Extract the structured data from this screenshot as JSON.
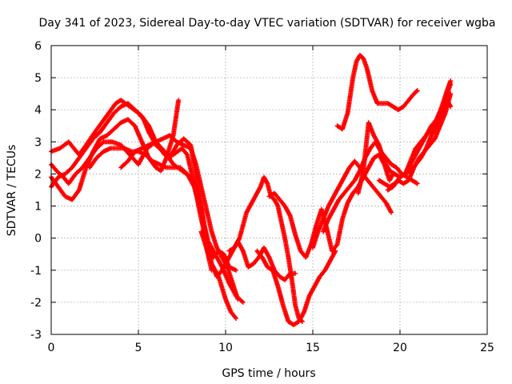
{
  "chart_data": {
    "type": "scatter",
    "title": "Day 341 of 2023, Sidereal Day-to-day VTEC variation (SDTVAR) for receiver wgba",
    "xlabel": "GPS time / hours",
    "ylabel": "SDTVAR / TECUs",
    "xlim": [
      0,
      25
    ],
    "ylim": [
      -3,
      6
    ],
    "x_ticks": [
      0,
      5,
      10,
      15,
      20,
      25
    ],
    "y_ticks": [
      -3,
      -2,
      -1,
      0,
      1,
      2,
      3,
      4,
      5,
      6
    ],
    "grid": true,
    "marker": "plus",
    "series": [
      {
        "color": "#ff0000",
        "tracks": [
          {
            "x": [
              0,
              0.5,
              1.0,
              1.3,
              1.6,
              2.0,
              2.5,
              2.9,
              3.3,
              3.7,
              4.0,
              4.5,
              5.0,
              5.3,
              5.6,
              6.0,
              6.4,
              6.8,
              7.2,
              7.6,
              8.0,
              8.3,
              8.6,
              8.9,
              9.2,
              9.6,
              10.0,
              10.3,
              10.6
            ],
            "y": [
              2.7,
              2.8,
              3.0,
              2.8,
              2.6,
              2.9,
              3.3,
              3.6,
              3.9,
              4.2,
              4.3,
              4.1,
              3.9,
              3.7,
              3.3,
              2.9,
              2.7,
              2.5,
              2.9,
              3.1,
              2.9,
              2.0,
              1.0,
              0.0,
              -0.8,
              -1.2,
              -1.9,
              -2.3,
              -2.5
            ]
          },
          {
            "x": [
              0,
              0.4,
              0.8,
              1.2,
              1.6,
              2.0,
              2.4,
              2.8,
              3.2,
              3.6,
              4.0,
              4.4,
              4.8,
              5.2,
              5.6,
              6.0,
              6.3,
              6.6,
              7.0,
              7.3
            ],
            "y": [
              1.9,
              1.6,
              1.3,
              1.2,
              1.5,
              2.2,
              2.7,
              3.1,
              3.2,
              3.4,
              3.6,
              3.7,
              3.5,
              3.0,
              2.5,
              2.2,
              2.1,
              2.5,
              3.2,
              4.3
            ]
          },
          {
            "x": [
              0,
              0.4,
              0.8,
              1.2,
              1.6,
              2.0,
              2.4,
              2.8,
              3.2,
              3.6,
              4.0,
              4.4,
              4.8,
              5.2,
              5.6,
              6.0,
              6.5,
              7.0,
              7.5,
              7.8,
              8.2,
              8.6,
              9.0,
              9.3,
              9.6,
              9.9,
              10.2,
              10.6
            ],
            "y": [
              1.6,
              1.9,
              2.0,
              2.2,
              2.5,
              2.8,
              3.1,
              3.3,
              3.6,
              3.9,
              4.1,
              4.2,
              4.0,
              3.8,
              3.5,
              3.0,
              2.6,
              2.6,
              2.8,
              2.6,
              1.7,
              0.6,
              -0.3,
              -0.6,
              -0.4,
              -0.5,
              -0.9,
              -1.0
            ]
          },
          {
            "x": [
              0,
              0.3,
              0.7,
              1.0,
              1.4,
              1.8,
              2.2,
              2.6,
              3.0,
              3.5,
              4.0,
              4.5,
              5.0,
              5.5,
              6.0,
              6.5,
              7.0,
              7.5,
              8.0,
              8.3,
              8.6,
              8.9,
              9.2
            ],
            "y": [
              2.3,
              2.1,
              1.9,
              1.7,
              2.0,
              2.2,
              2.5,
              2.8,
              3.0,
              3.0,
              2.9,
              2.6,
              2.3,
              2.8,
              3.0,
              2.7,
              2.3,
              2.1,
              1.9,
              1.6,
              0.9,
              -0.3,
              -1.0
            ]
          },
          {
            "x": [
              2.2,
              2.6,
              3.0,
              3.4,
              3.8,
              4.2,
              4.6,
              5.0,
              5.4,
              5.8,
              6.2,
              6.6,
              7.0,
              7.4,
              7.8,
              8.2,
              8.6,
              9.0,
              9.4,
              9.8,
              10.2,
              10.6,
              11.0
            ],
            "y": [
              2.2,
              2.5,
              2.7,
              2.8,
              2.8,
              2.8,
              2.7,
              2.7,
              2.6,
              2.4,
              2.3,
              2.2,
              2.2,
              2.2,
              2.0,
              1.6,
              0.8,
              -0.1,
              -0.5,
              -0.9,
              -1.4,
              -1.8,
              -2.0
            ]
          },
          {
            "x": [
              4.0,
              4.4,
              4.8,
              5.2,
              5.6,
              6.0,
              6.4,
              6.8,
              7.2,
              7.6,
              8.0,
              8.3,
              8.6,
              8.9,
              9.2,
              9.5,
              9.8,
              10.1,
              10.4,
              10.7
            ],
            "y": [
              2.2,
              2.4,
              2.7,
              2.8,
              2.9,
              3.0,
              3.1,
              3.2,
              3.0,
              2.9,
              2.8,
              2.3,
              1.6,
              0.9,
              0.2,
              -0.3,
              -0.6,
              -0.9,
              -1.4,
              -1.9
            ]
          },
          {
            "x": [
              8.6,
              8.9,
              9.2,
              9.5,
              9.8,
              10.1,
              10.4,
              10.7,
              11.0,
              11.3,
              11.6,
              11.9,
              12.2,
              12.5,
              12.8,
              13.1,
              13.4,
              13.7,
              14.0
            ],
            "y": [
              0.2,
              -0.3,
              -0.8,
              -1.2,
              -1.0,
              -0.7,
              -0.4,
              -0.1,
              -0.4,
              -0.9,
              -0.8,
              -0.6,
              -0.3,
              -0.6,
              -1.0,
              -1.2,
              -1.3,
              -1.1,
              -1.1
            ]
          },
          {
            "x": [
              10.2,
              10.5,
              10.8,
              11.0,
              11.2,
              11.4,
              11.6,
              11.8,
              12.0,
              12.2,
              12.4,
              12.6,
              12.8,
              13.0,
              13.2,
              13.4,
              13.6,
              13.8,
              14.0,
              14.2,
              14.4
            ],
            "y": [
              -0.4,
              -0.3,
              0.0,
              0.4,
              0.8,
              1.0,
              1.2,
              1.4,
              1.6,
              1.9,
              1.7,
              1.3,
              1.2,
              1.0,
              0.5,
              0.0,
              -0.6,
              -1.3,
              -2.1,
              -2.5,
              -2.6
            ]
          },
          {
            "x": [
              11.8,
              12.1,
              12.4,
              12.7,
              13.0,
              13.3,
              13.6,
              13.9,
              14.2,
              14.5,
              14.8,
              15.1,
              15.4,
              15.7,
              16.0,
              16.3
            ],
            "y": [
              -0.4,
              -0.6,
              -0.9,
              -1.0,
              -1.5,
              -2.1,
              -2.6,
              -2.7,
              -2.6,
              -2.3,
              -1.8,
              -1.5,
              -1.2,
              -1.0,
              -0.7,
              -0.4
            ]
          },
          {
            "x": [
              12.5,
              12.8,
              13.1,
              13.4,
              13.7,
              14.0,
              14.3,
              14.6,
              14.9,
              15.2,
              15.5,
              15.8,
              16.1,
              16.4,
              16.7,
              17.0,
              17.3,
              17.6,
              17.9,
              18.2,
              18.5,
              18.8,
              19.1,
              19.4,
              19.6
            ],
            "y": [
              1.3,
              1.4,
              1.2,
              1.0,
              0.7,
              0.1,
              -0.4,
              -0.6,
              -0.2,
              0.4,
              0.9,
              0.3,
              -0.4,
              -0.2,
              0.6,
              1.1,
              1.4,
              1.6,
              1.9,
              2.2,
              2.5,
              2.6,
              2.3,
              1.8,
              2.0
            ]
          },
          {
            "x": [
              15.0,
              15.3,
              15.6,
              15.9,
              16.2,
              16.5,
              16.8,
              17.1,
              17.4,
              17.7,
              18.0,
              18.3,
              18.6,
              18.9,
              19.2,
              19.5
            ],
            "y": [
              -0.3,
              0.2,
              0.6,
              1.0,
              1.3,
              1.6,
              1.9,
              2.2,
              2.4,
              2.2,
              1.9,
              1.7,
              1.5,
              1.3,
              1.1,
              0.8
            ]
          },
          {
            "x": [
              15.6,
              15.9,
              16.2,
              16.5,
              16.8,
              17.1,
              17.4,
              17.7,
              18.0,
              18.3,
              18.6,
              18.9,
              19.2,
              19.5,
              19.8,
              20.1,
              20.4,
              20.7,
              21.0
            ],
            "y": [
              0.2,
              0.6,
              0.9,
              1.2,
              1.4,
              1.6,
              1.8,
              2.1,
              2.5,
              2.8,
              3.0,
              2.7,
              2.5,
              2.3,
              2.2,
              2.0,
              1.9,
              1.8,
              1.7
            ]
          },
          {
            "x": [
              16.4,
              16.7,
              17.0,
              17.3,
              17.5,
              17.7,
              17.9,
              18.1,
              18.4,
              18.7,
              19.0,
              19.3,
              19.6,
              19.9,
              20.2,
              20.5,
              20.8,
              21.0
            ],
            "y": [
              3.5,
              3.4,
              3.9,
              5.0,
              5.5,
              5.7,
              5.6,
              5.3,
              4.6,
              4.2,
              4.2,
              4.2,
              4.1,
              4.0,
              4.1,
              4.3,
              4.5,
              4.6
            ]
          },
          {
            "x": [
              17.6,
              17.9,
              18.2,
              18.5,
              18.8,
              19.1,
              19.4,
              19.7,
              20.0,
              20.3,
              20.6,
              20.9,
              21.2,
              21.5,
              21.8,
              22.1,
              22.4,
              22.7,
              22.9
            ],
            "y": [
              1.4,
              2.1,
              3.6,
              3.2,
              2.9,
              2.4,
              2.1,
              2.0,
              1.9,
              2.0,
              2.4,
              2.8,
              3.0,
              3.2,
              3.4,
              3.7,
              4.0,
              4.5,
              4.8
            ]
          },
          {
            "x": [
              18.8,
              19.1,
              19.4,
              19.7,
              20.0,
              20.3,
              20.6,
              20.9,
              21.2,
              21.5,
              21.8,
              22.1,
              22.4,
              22.7,
              22.9
            ],
            "y": [
              1.8,
              1.7,
              1.6,
              1.7,
              1.9,
              2.0,
              2.1,
              2.3,
              2.5,
              2.8,
              3.2,
              3.5,
              3.9,
              4.3,
              4.1
            ]
          },
          {
            "x": [
              19.3,
              19.6,
              19.9,
              20.2,
              20.5,
              20.8,
              21.1,
              21.4,
              21.7,
              22.0,
              22.3,
              22.6,
              22.9
            ],
            "y": [
              1.5,
              1.6,
              1.8,
              1.7,
              1.8,
              2.2,
              2.5,
              2.7,
              2.9,
              3.1,
              3.5,
              3.9,
              4.5
            ]
          },
          {
            "x": [
              20.0,
              20.3,
              20.6,
              20.9,
              21.2,
              21.5,
              21.8,
              22.1,
              22.4,
              22.7,
              22.9
            ],
            "y": [
              1.9,
              2.0,
              2.3,
              2.6,
              2.9,
              3.2,
              3.5,
              3.7,
              4.1,
              4.6,
              4.9
            ]
          }
        ]
      }
    ]
  }
}
